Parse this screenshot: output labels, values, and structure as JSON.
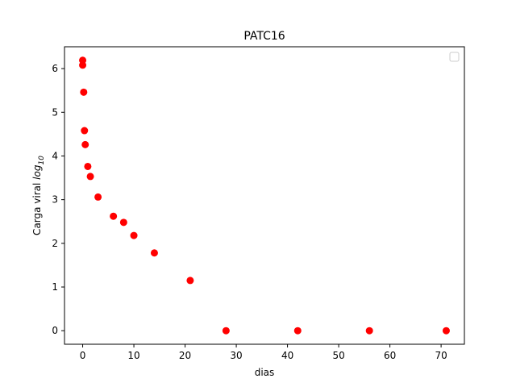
{
  "chart_data": {
    "type": "scatter",
    "title": "PATC16",
    "xlabel": "dias",
    "ylabel_prefix": "Carga viral ",
    "ylabel_log": "log",
    "ylabel_sub": "10",
    "xlim": [
      -3.55,
      74.55
    ],
    "ylim": [
      -0.31,
      6.5
    ],
    "xticks": [
      0,
      10,
      20,
      30,
      40,
      50,
      60,
      70
    ],
    "yticks": [
      0,
      1,
      2,
      3,
      4,
      5,
      6
    ],
    "legend": "top-right",
    "grid": false,
    "marker_color": "#ff0000",
    "series": [
      {
        "x": [
          0,
          0,
          0.2,
          0.35,
          0.5,
          1,
          1.5,
          3,
          6,
          8,
          10,
          14,
          21,
          28,
          42,
          56,
          71
        ],
        "y": [
          6.19,
          6.08,
          5.46,
          4.58,
          4.26,
          3.76,
          3.53,
          3.06,
          2.62,
          2.48,
          2.18,
          1.78,
          1.15,
          0,
          0,
          0,
          0
        ]
      }
    ]
  }
}
